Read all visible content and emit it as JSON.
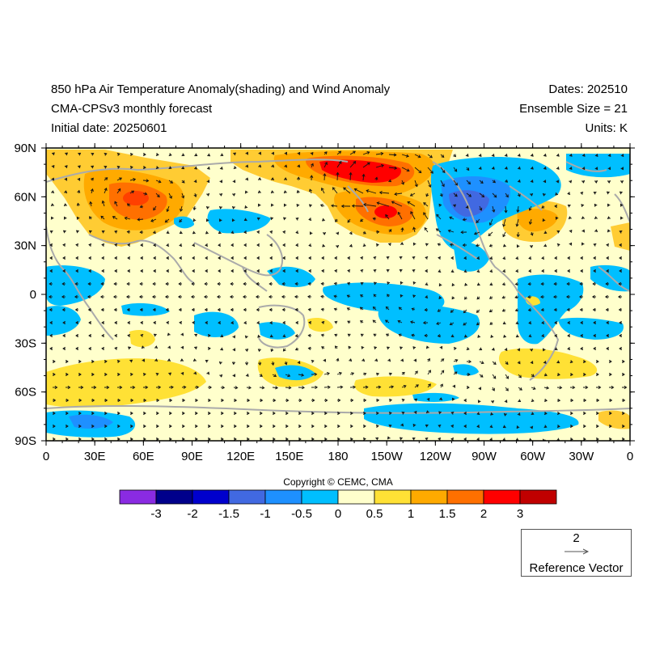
{
  "header": {
    "title_left": "850 hPa Air Temperature Anomaly(shading) and Wind Anomaly",
    "subtitle_left": "CMA-CPSv3 monthly forecast",
    "init_left": "Initial date: 20250601",
    "dates_right": "Dates: 202510",
    "ensemble_right": "Ensemble Size = 21",
    "units_right": "Units: K"
  },
  "axes": {
    "lat_labels": [
      "90N",
      "60N",
      "30N",
      "0",
      "30S",
      "60S",
      "90S"
    ],
    "lon_labels": [
      "0",
      "30E",
      "60E",
      "90E",
      "120E",
      "150E",
      "180",
      "150W",
      "120W",
      "90W",
      "60W",
      "30W",
      "0"
    ]
  },
  "copyright": "Copyright © CEMC, CMA",
  "colorbar": {
    "colors": [
      "#8a2be2",
      "#00008b",
      "#0000cd",
      "#4169e1",
      "#1e90ff",
      "#00bfff",
      "#ffffcc",
      "#ffe135",
      "#ffaa00",
      "#ff7000",
      "#ff0000",
      "#c00000"
    ],
    "labels": [
      "-3",
      "-2",
      "-1.5",
      "-1",
      "-0.5",
      "0",
      "0.5",
      "1",
      "1.5",
      "2",
      "3"
    ]
  },
  "reference_vector": {
    "magnitude": "2",
    "label": "Reference Vector"
  }
}
